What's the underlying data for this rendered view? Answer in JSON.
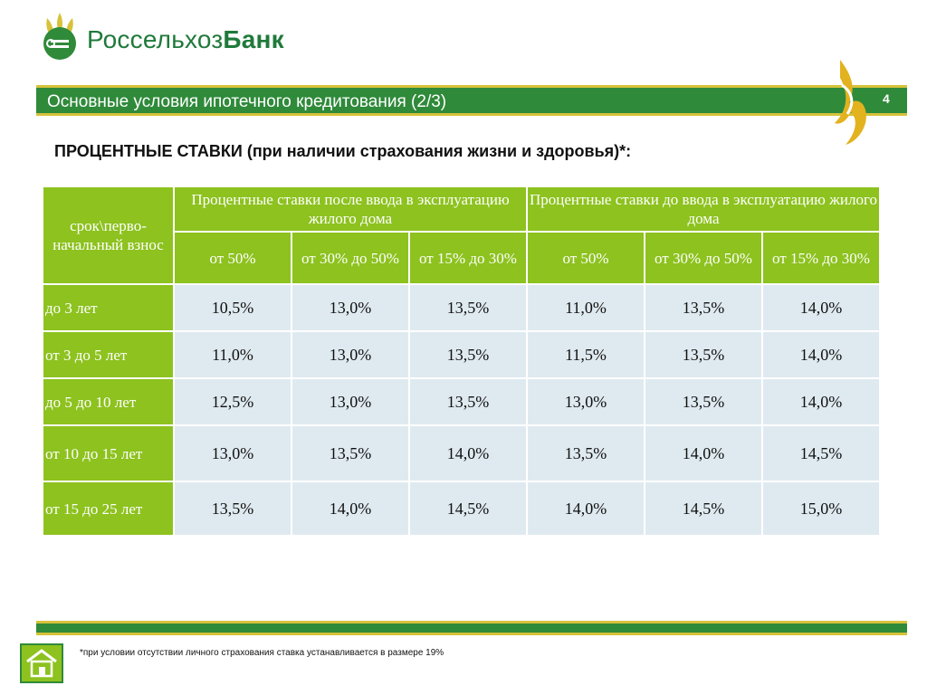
{
  "brand": {
    "name_light": "Россельхоз",
    "name_bold": "Банк"
  },
  "header": {
    "title": "Основные условия ипотечного кредитования (2/3)",
    "page_number": "4"
  },
  "subtitle": "ПРОЦЕНТНЫЕ СТАВКИ (при наличии страхования жизни и здоровья)*:",
  "table": {
    "corner_header": "срок\\перво-начальный взнос",
    "group_headers": [
      "Процентные ставки после ввода в эксплуатацию жилого дома",
      "Процентные ставки до ввода в эксплуатацию жилого дома"
    ],
    "sub_headers": [
      "от 50%",
      "от 30% до 50%",
      "от 15% до 30%",
      "от 50%",
      "от 30% до 50%",
      "от 15% до 30%"
    ],
    "rows": [
      {
        "label": "до 3 лет",
        "values": [
          "10,5%",
          "13,0%",
          "13,5%",
          "11,0%",
          "13,5%",
          "14,0%"
        ]
      },
      {
        "label": "от 3 до 5 лет",
        "values": [
          "11,0%",
          "13,0%",
          "13,5%",
          "11,5%",
          "13,5%",
          "14,0%"
        ]
      },
      {
        "label": "до 5 до 10 лет",
        "values": [
          "12,5%",
          "13,0%",
          "13,5%",
          "13,0%",
          "13,5%",
          "14,0%"
        ]
      },
      {
        "label": "от 10 до 15 лет",
        "values": [
          "13,0%",
          "13,5%",
          "14,0%",
          "13,5%",
          "14,0%",
          "14,5%"
        ]
      },
      {
        "label": "от 15 до 25 лет",
        "values": [
          "13,5%",
          "14,0%",
          "14,5%",
          "14,0%",
          "14,5%",
          "15,0%"
        ]
      }
    ]
  },
  "footnote": "*при условии  отсутствии личного страхования ставка устанавливается в размере 19%",
  "colors": {
    "green_dark": "#2f8a3a",
    "green_light": "#8dc21f",
    "gold": "#d7c23a",
    "cell_bg": "#dfeaf0"
  }
}
